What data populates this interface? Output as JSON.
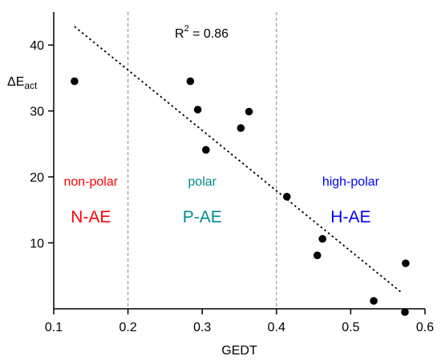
{
  "chart_data": {
    "type": "scatter",
    "title": "",
    "xlabel": "GEDT",
    "ylabel": {
      "main": "ΔE",
      "sub": "act"
    },
    "xlim": [
      0.1,
      0.6
    ],
    "ylim": [
      0,
      45
    ],
    "xticks": [
      0.1,
      0.2,
      0.3,
      0.4,
      0.5,
      0.6
    ],
    "xtick_labels": [
      "0.1",
      "0.2",
      "0.3",
      "0.4",
      "0.5",
      "0.6"
    ],
    "yticks": [
      10,
      20,
      30,
      40
    ],
    "ytick_labels": [
      "10",
      "20",
      "30",
      "40"
    ],
    "grid": false,
    "series": [
      {
        "marker_color": "#000000",
        "points": [
          {
            "x": 0.128,
            "y": 34.5
          },
          {
            "x": 0.284,
            "y": 34.5
          },
          {
            "x": 0.294,
            "y": 30.2
          },
          {
            "x": 0.305,
            "y": 24.1
          },
          {
            "x": 0.352,
            "y": 27.4
          },
          {
            "x": 0.363,
            "y": 29.9
          },
          {
            "x": 0.414,
            "y": 17.0
          },
          {
            "x": 0.455,
            "y": 8.1
          },
          {
            "x": 0.462,
            "y": 10.6
          },
          {
            "x": 0.531,
            "y": 1.2
          },
          {
            "x": 0.573,
            "y": -0.5
          },
          {
            "x": 0.574,
            "y": 6.9
          }
        ]
      }
    ],
    "trendline": {
      "style": "dotted",
      "color": "#000000",
      "from": {
        "x": 0.128,
        "y": 42.8
      },
      "to": {
        "x": 0.567,
        "y": 2.6
      }
    },
    "dividers": [
      {
        "x": 0.2,
        "style": "dashed",
        "color": "#999999"
      },
      {
        "x": 0.4,
        "style": "dashed",
        "color": "#999999"
      }
    ],
    "r2": {
      "prefix": "R",
      "sup": "2",
      "suffix": " = 0.86"
    },
    "regions": [
      {
        "label": "non-polar",
        "code": "N-AE",
        "color": "#ff0000",
        "label_color": "#ff0000",
        "code_color": "#ff0000",
        "x_center": 0.15
      },
      {
        "label": "polar",
        "code": "P-AE",
        "color": "#008b8b",
        "label_color": "#008b8b",
        "code_color": "#008b8b",
        "x_center": 0.3
      },
      {
        "label": "high-polar",
        "code": "H-AE",
        "color": "#0000ff",
        "label_color": "#0000ff",
        "code_color": "#0000ff",
        "x_center": 0.5
      }
    ]
  }
}
